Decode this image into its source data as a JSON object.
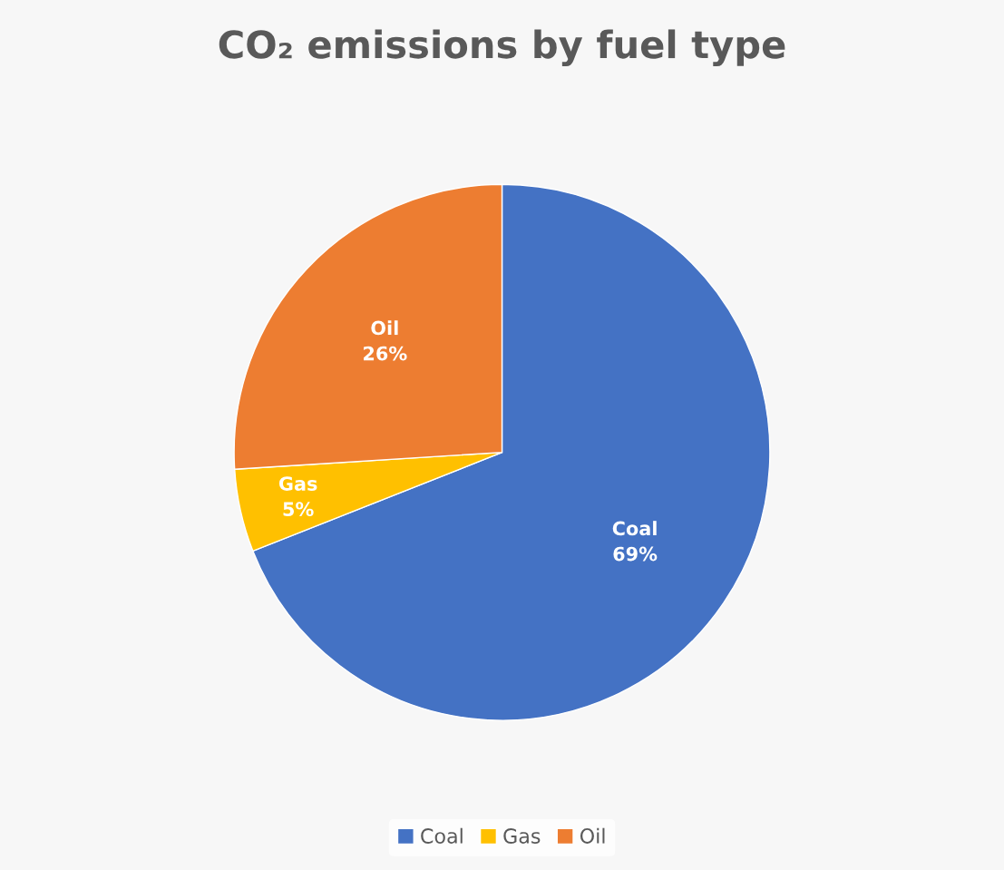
{
  "chart_data": {
    "type": "pie",
    "title": "CO₂ emissions by fuel type",
    "categories": [
      "Coal",
      "Gas",
      "Oil"
    ],
    "values": [
      69,
      5,
      26
    ],
    "colors": [
      "#4472c4",
      "#ffc000",
      "#ed7d31"
    ],
    "value_labels": [
      "69%",
      "5%",
      "26%"
    ],
    "legend": "bottom"
  }
}
